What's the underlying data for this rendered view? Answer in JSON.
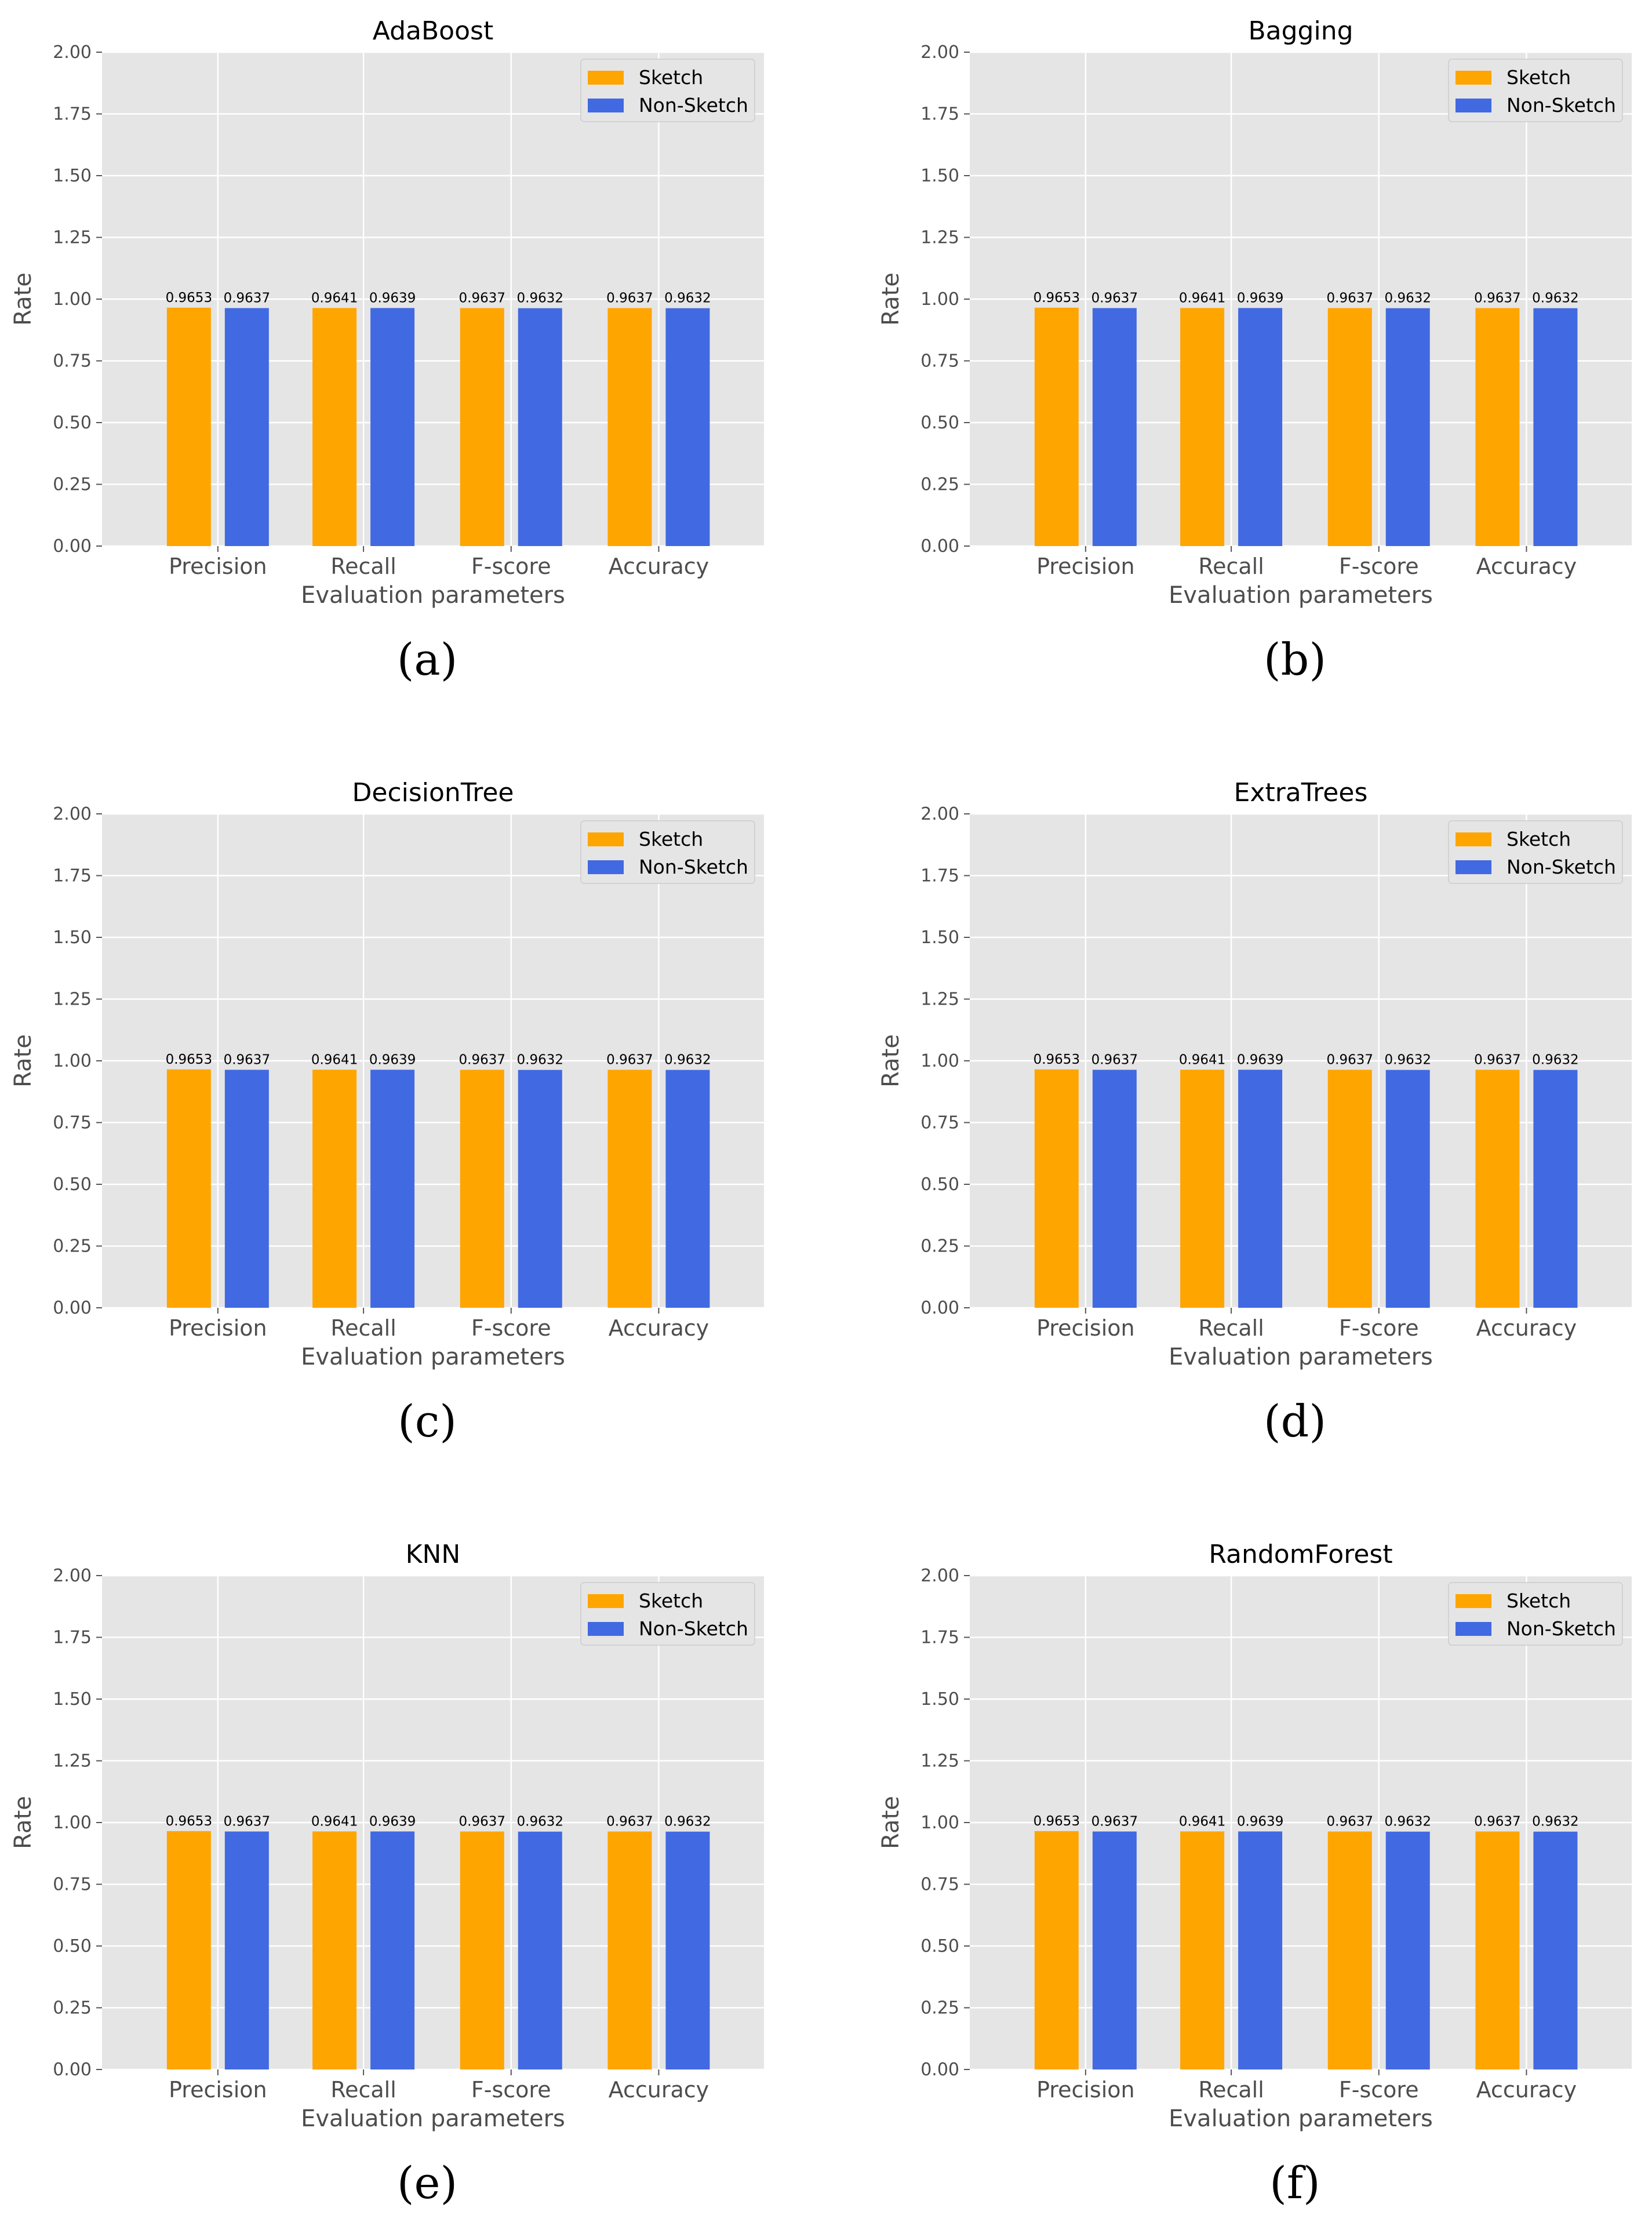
{
  "colors": {
    "sketch": "#FFA500",
    "non_sketch": "#4169E1",
    "plot_background": "#E5E5E5",
    "grid": "#FFFFFF"
  },
  "chart_data": [
    {
      "type": "bar",
      "panel_label": "(a)",
      "title": "AdaBoost",
      "xlabel": "Evaluation parameters",
      "ylabel": "Rate",
      "ylim": [
        0,
        2.0
      ],
      "yticks": [
        "0.00",
        "0.25",
        "0.50",
        "0.75",
        "1.00",
        "1.25",
        "1.50",
        "1.75",
        "2.00"
      ],
      "categories": [
        "Precision",
        "Recall",
        "F-score",
        "Accuracy"
      ],
      "series": [
        {
          "name": "Sketch",
          "values": [
            0.9653,
            0.9641,
            0.9637,
            0.9637
          ],
          "labels": [
            "0.9653",
            "0.9641",
            "0.9637",
            "0.9637"
          ]
        },
        {
          "name": "Non-Sketch",
          "values": [
            0.9637,
            0.9639,
            0.9632,
            0.9632
          ],
          "labels": [
            "0.9637",
            "0.9639",
            "0.9632",
            "0.9632"
          ]
        }
      ],
      "grid": true,
      "legend_position": "top-right"
    },
    {
      "type": "bar",
      "panel_label": "(b)",
      "title": "Bagging",
      "xlabel": "Evaluation parameters",
      "ylabel": "Rate",
      "ylim": [
        0,
        2.0
      ],
      "yticks": [
        "0.00",
        "0.25",
        "0.50",
        "0.75",
        "1.00",
        "1.25",
        "1.50",
        "1.75",
        "2.00"
      ],
      "categories": [
        "Precision",
        "Recall",
        "F-score",
        "Accuracy"
      ],
      "series": [
        {
          "name": "Sketch",
          "values": [
            0.9653,
            0.9641,
            0.9637,
            0.9637
          ],
          "labels": [
            "0.9653",
            "0.9641",
            "0.9637",
            "0.9637"
          ]
        },
        {
          "name": "Non-Sketch",
          "values": [
            0.9637,
            0.9639,
            0.9632,
            0.9632
          ],
          "labels": [
            "0.9637",
            "0.9639",
            "0.9632",
            "0.9632"
          ]
        }
      ],
      "grid": true,
      "legend_position": "top-right"
    },
    {
      "type": "bar",
      "panel_label": "(c)",
      "title": "DecisionTree",
      "xlabel": "Evaluation parameters",
      "ylabel": "Rate",
      "ylim": [
        0,
        2.0
      ],
      "yticks": [
        "0.00",
        "0.25",
        "0.50",
        "0.75",
        "1.00",
        "1.25",
        "1.50",
        "1.75",
        "2.00"
      ],
      "categories": [
        "Precision",
        "Recall",
        "F-score",
        "Accuracy"
      ],
      "series": [
        {
          "name": "Sketch",
          "values": [
            0.9653,
            0.9641,
            0.9637,
            0.9637
          ],
          "labels": [
            "0.9653",
            "0.9641",
            "0.9637",
            "0.9637"
          ]
        },
        {
          "name": "Non-Sketch",
          "values": [
            0.9637,
            0.9639,
            0.9632,
            0.9632
          ],
          "labels": [
            "0.9637",
            "0.9639",
            "0.9632",
            "0.9632"
          ]
        }
      ],
      "grid": true,
      "legend_position": "top-right"
    },
    {
      "type": "bar",
      "panel_label": "(d)",
      "title": "ExtraTrees",
      "xlabel": "Evaluation parameters",
      "ylabel": "Rate",
      "ylim": [
        0,
        2.0
      ],
      "yticks": [
        "0.00",
        "0.25",
        "0.50",
        "0.75",
        "1.00",
        "1.25",
        "1.50",
        "1.75",
        "2.00"
      ],
      "categories": [
        "Precision",
        "Recall",
        "F-score",
        "Accuracy"
      ],
      "series": [
        {
          "name": "Sketch",
          "values": [
            0.9653,
            0.9641,
            0.9637,
            0.9637
          ],
          "labels": [
            "0.9653",
            "0.9641",
            "0.9637",
            "0.9637"
          ]
        },
        {
          "name": "Non-Sketch",
          "values": [
            0.9637,
            0.9639,
            0.9632,
            0.9632
          ],
          "labels": [
            "0.9637",
            "0.9639",
            "0.9632",
            "0.9632"
          ]
        }
      ],
      "grid": true,
      "legend_position": "top-right"
    },
    {
      "type": "bar",
      "panel_label": "(e)",
      "title": "KNN",
      "xlabel": "Evaluation parameters",
      "ylabel": "Rate",
      "ylim": [
        0,
        2.0
      ],
      "yticks": [
        "0.00",
        "0.25",
        "0.50",
        "0.75",
        "1.00",
        "1.25",
        "1.50",
        "1.75",
        "2.00"
      ],
      "categories": [
        "Precision",
        "Recall",
        "F-score",
        "Accuracy"
      ],
      "series": [
        {
          "name": "Sketch",
          "values": [
            0.9653,
            0.9641,
            0.9637,
            0.9637
          ],
          "labels": [
            "0.9653",
            "0.9641",
            "0.9637",
            "0.9637"
          ]
        },
        {
          "name": "Non-Sketch",
          "values": [
            0.9637,
            0.9639,
            0.9632,
            0.9632
          ],
          "labels": [
            "0.9637",
            "0.9639",
            "0.9632",
            "0.9632"
          ]
        }
      ],
      "grid": true,
      "legend_position": "top-right"
    },
    {
      "type": "bar",
      "panel_label": "(f)",
      "title": "RandomForest",
      "xlabel": "Evaluation parameters",
      "ylabel": "Rate",
      "ylim": [
        0,
        2.0
      ],
      "yticks": [
        "0.00",
        "0.25",
        "0.50",
        "0.75",
        "1.00",
        "1.25",
        "1.50",
        "1.75",
        "2.00"
      ],
      "categories": [
        "Precision",
        "Recall",
        "F-score",
        "Accuracy"
      ],
      "series": [
        {
          "name": "Sketch",
          "values": [
            0.9653,
            0.9641,
            0.9637,
            0.9637
          ],
          "labels": [
            "0.9653",
            "0.9641",
            "0.9637",
            "0.9637"
          ]
        },
        {
          "name": "Non-Sketch",
          "values": [
            0.9637,
            0.9639,
            0.9632,
            0.9632
          ],
          "labels": [
            "0.9637",
            "0.9639",
            "0.9632",
            "0.9632"
          ]
        }
      ],
      "grid": true,
      "legend_position": "top-right"
    }
  ]
}
